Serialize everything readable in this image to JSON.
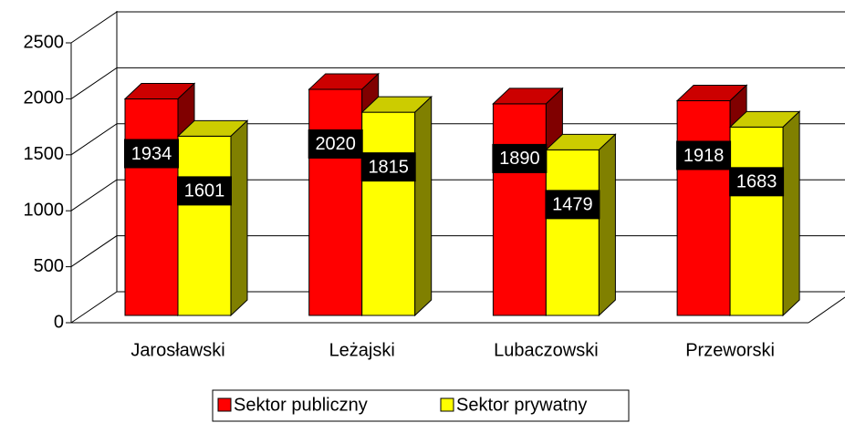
{
  "chart_data": {
    "type": "bar3d",
    "categories": [
      "Jarosławski",
      "Leżajski",
      "Lubaczowski",
      "Przeworski"
    ],
    "series": [
      {
        "name": "Sektor publiczny",
        "color": "#ff0000",
        "values": [
          1934,
          2020,
          1890,
          1918
        ]
      },
      {
        "name": "Sektor prywatny",
        "color": "#ffff00",
        "values": [
          1601,
          1815,
          1479,
          1683
        ]
      }
    ],
    "ylim": [
      0,
      2500
    ],
    "yticks": [
      0,
      500,
      1000,
      1500,
      2000,
      2500
    ],
    "grid": true,
    "legend": "bottom"
  }
}
